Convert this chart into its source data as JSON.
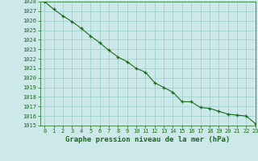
{
  "x": [
    0,
    1,
    2,
    3,
    4,
    5,
    6,
    7,
    8,
    9,
    10,
    11,
    12,
    13,
    14,
    15,
    16,
    17,
    18,
    19,
    20,
    21,
    22,
    23
  ],
  "y": [
    1028.0,
    1027.2,
    1026.5,
    1025.9,
    1025.2,
    1024.4,
    1023.7,
    1022.9,
    1022.2,
    1021.7,
    1021.0,
    1020.6,
    1019.5,
    1019.0,
    1018.5,
    1017.5,
    1017.5,
    1016.9,
    1016.8,
    1016.5,
    1016.2,
    1016.1,
    1016.0,
    1015.2
  ],
  "ylim": [
    1015,
    1028
  ],
  "xlim": [
    -0.5,
    23
  ],
  "yticks": [
    1015,
    1016,
    1017,
    1018,
    1019,
    1020,
    1021,
    1022,
    1023,
    1024,
    1025,
    1026,
    1027,
    1028
  ],
  "xticks": [
    0,
    1,
    2,
    3,
    4,
    5,
    6,
    7,
    8,
    9,
    10,
    11,
    12,
    13,
    14,
    15,
    16,
    17,
    18,
    19,
    20,
    21,
    22,
    23
  ],
  "xlabel": "Graphe pression niveau de la mer (hPa)",
  "line_color": "#1a6b1a",
  "marker": "+",
  "bg_color": "#cce8e8",
  "grid_color": "#99cccc",
  "tick_fontsize": 5.0,
  "xlabel_fontsize": 6.5,
  "xlabel_fontweight": "bold"
}
